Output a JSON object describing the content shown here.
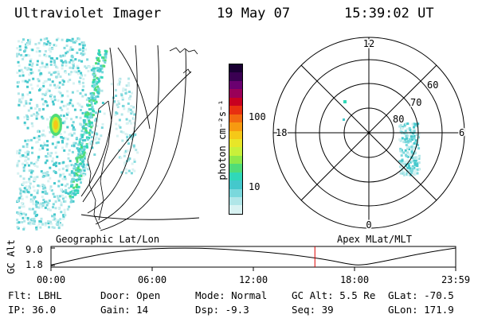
{
  "header": {
    "instrument": "Ultraviolet Imager",
    "date": "19 May 07",
    "time": "15:39:02 UT"
  },
  "colorbar": {
    "label": "photon cm⁻²s⁻¹",
    "ticks": [
      "100",
      "10"
    ],
    "colors": [
      "#1a0033",
      "#3a0052",
      "#6a0070",
      "#9a0058",
      "#c80020",
      "#e83010",
      "#f26a10",
      "#f79a10",
      "#f5c818",
      "#e8e628",
      "#c8f03a",
      "#8ee84a",
      "#50dc78",
      "#30d8b8",
      "#44c8cc",
      "#7ad8dc",
      "#b0e6e8",
      "#d8f2f2"
    ]
  },
  "left_panel": {
    "label": "Geographic Lat/Lon"
  },
  "polar_panel": {
    "label": "Apex MLat/MLT",
    "mlt_labels": {
      "top": "12",
      "left": "18",
      "right": "6",
      "bottom": "0"
    },
    "lat_labels": [
      "60",
      "70",
      "80"
    ]
  },
  "chart_data": {
    "type": "line",
    "title": "",
    "ylabel": "GC Alt",
    "ylim": [
      1.8,
      9.0
    ],
    "yticks": [
      "9.0",
      "1.8"
    ],
    "xticks": [
      "00:00",
      "06:00",
      "12:00",
      "18:00",
      "23:59"
    ],
    "x_hours": [
      0,
      2,
      4,
      6,
      8,
      9.5,
      11,
      13,
      15,
      16.5,
      17.5,
      18.3,
      19.5,
      21,
      22.5,
      24
    ],
    "altitude_re": [
      2.0,
      5.2,
      7.7,
      8.8,
      9.0,
      8.8,
      8.2,
      7.2,
      5.6,
      4.0,
      2.6,
      1.8,
      3.2,
      5.4,
      7.4,
      9.0
    ],
    "current_time_hours": 15.65,
    "current_marker_color": "#dd0000"
  },
  "info": {
    "row1": {
      "filter": "Flt: LBHL",
      "door": "Door: Open",
      "mode": "Mode: Normal",
      "gc_alt": "GC Alt: 5.5 Re",
      "glat": "GLat: -70.5"
    },
    "row2": {
      "ip": "IP: 36.0",
      "gain": "Gain: 14",
      "dsp": "Dsp:   -9.3",
      "seq": "Seq: 39",
      "glon": "GLon: 171.9"
    }
  }
}
